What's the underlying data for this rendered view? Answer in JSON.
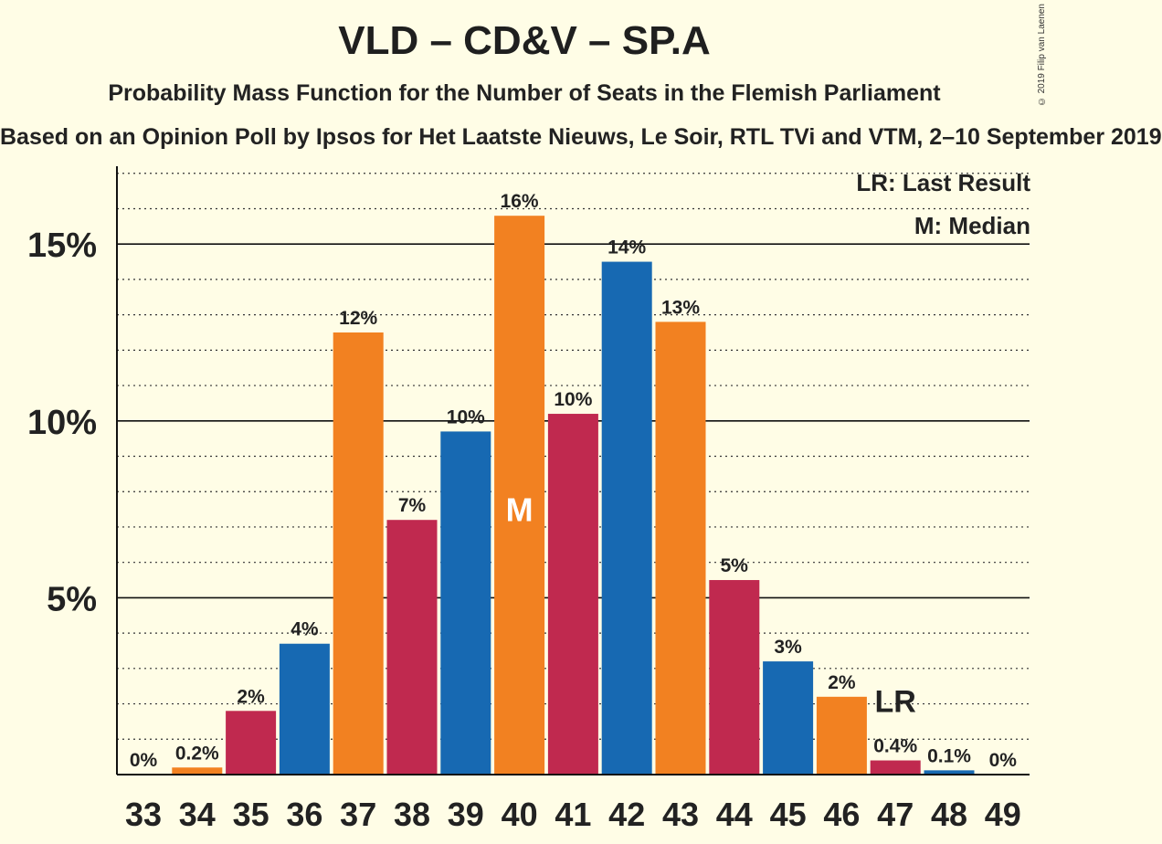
{
  "chart_data": {
    "type": "bar",
    "title": "VLD – CD&V – SP.A",
    "subtitle": "Probability Mass Function for the Number of Seats in the Flemish Parliament",
    "subtitle2": "Based on an Opinion Poll by Ipsos for Het Laatste Nieuws, Le Soir, RTL TVi and VTM, 2–10 September 2019",
    "copyright": "© 2019 Filip van Laenen",
    "categories": [
      "33",
      "34",
      "35",
      "36",
      "37",
      "38",
      "39",
      "40",
      "41",
      "42",
      "43",
      "44",
      "45",
      "46",
      "47",
      "48",
      "49"
    ],
    "values": [
      0,
      0.2,
      1.8,
      3.7,
      12.5,
      7.2,
      9.7,
      15.8,
      10.2,
      14.5,
      12.8,
      5.5,
      3.2,
      2.2,
      0.4,
      0.12,
      0
    ],
    "data_labels": [
      "0%",
      "0.2%",
      "2%",
      "4%",
      "12%",
      "7%",
      "10%",
      "16%",
      "10%",
      "14%",
      "13%",
      "5%",
      "3%",
      "2%",
      "0.4%",
      "0.1%",
      "0%"
    ],
    "bar_colors": [
      "#1769b2",
      "#f28121",
      "#c0294f",
      "#1769b2",
      "#f28121",
      "#c0294f",
      "#1769b2",
      "#f28121",
      "#c0294f",
      "#1769b2",
      "#f28121",
      "#c0294f",
      "#1769b2",
      "#f28121",
      "#c0294f",
      "#1769b2",
      "#f28121"
    ],
    "yticks": [
      {
        "value": 5,
        "label": "5%"
      },
      {
        "value": 10,
        "label": "10%"
      },
      {
        "value": 15,
        "label": "15%"
      }
    ],
    "ylim": [
      0,
      17.2
    ],
    "minor_grid_step": 1,
    "median_seat": "40",
    "median_marker": "M",
    "last_result_seat": "47",
    "last_result_marker": "LR",
    "legend": {
      "last_result": "LR: Last Result",
      "median": "M: Median"
    }
  }
}
